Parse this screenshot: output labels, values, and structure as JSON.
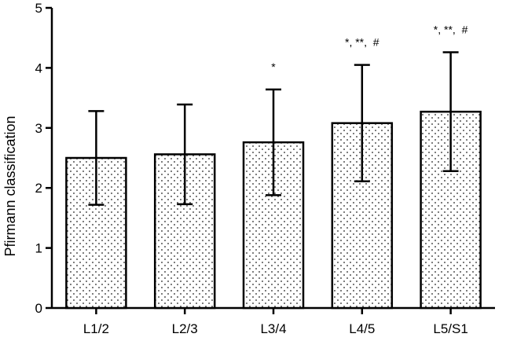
{
  "chart_data": {
    "type": "bar",
    "title": "",
    "xlabel": "",
    "ylabel": "Pfirmann classification",
    "ylim": [
      0,
      5
    ],
    "yticks": [
      0,
      1,
      2,
      3,
      4,
      5
    ],
    "categories": [
      "L1/2",
      "L2/3",
      "L3/4",
      "L4/5",
      "L5/S1"
    ],
    "series": [
      {
        "values": [
          2.5,
          2.56,
          2.76,
          3.08,
          3.27
        ],
        "error": [
          0.78,
          0.83,
          0.88,
          0.97,
          0.99
        ]
      }
    ],
    "annotations": [
      "",
      "",
      "*",
      "*, **,  #",
      "*, **,  #"
    ],
    "bar_fill": "#ffffff",
    "bar_pattern": "dots",
    "grid": false,
    "legend": "none"
  }
}
